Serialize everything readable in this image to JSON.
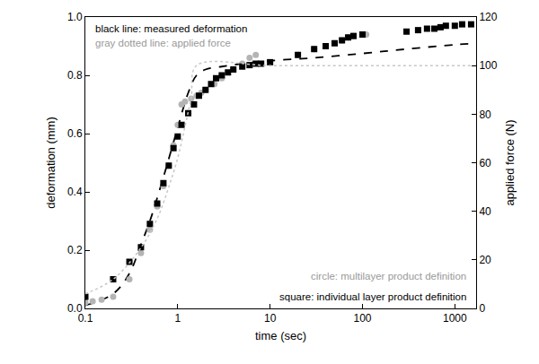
{
  "chart_data": {
    "type": "line",
    "x_label": "time (sec)",
    "y_label": "deformation (mm)",
    "y2_label": "applied force (N)",
    "log": "x",
    "grid": false,
    "xlim": [
      0.1,
      1700
    ],
    "xticks": [
      0.1,
      1,
      10,
      100,
      1000
    ],
    "ylim": [
      0,
      1.0
    ],
    "yticks": [
      {
        "value": 0,
        "label": "0.0"
      },
      0.2,
      0.4,
      0.6,
      0.8,
      {
        "value": 1,
        "label": "1.0"
      }
    ],
    "y2lim": [
      0,
      120
    ],
    "y2ticks": [
      0,
      20,
      40,
      60,
      80,
      100,
      120
    ],
    "annotations": [
      {
        "text": "black line: measured deformation",
        "color": "#000000"
      },
      {
        "text": "gray dotted line: applied force",
        "color": "#9a9a9a"
      },
      {
        "text": "circle: multilayer product definition",
        "color": "#9a9a9a"
      },
      {
        "text": "square: individual layer product definition",
        "color": "#000000"
      }
    ],
    "series": [
      {
        "type": "line",
        "line_style": "dotted",
        "color": "#c8c8c8",
        "axis": "y2",
        "x": [
          0.1,
          0.2,
          0.4,
          0.6,
          0.8,
          1.0,
          1.2,
          1.4,
          1.6,
          10,
          100,
          1700
        ],
        "values": [
          6,
          12,
          25,
          37,
          50,
          62,
          75,
          87,
          100,
          100,
          100,
          100
        ]
      },
      {
        "type": "line",
        "line_style": "dashed",
        "color": "#000000",
        "x": [
          0.1,
          0.2,
          0.3,
          0.4,
          0.5,
          0.7,
          1,
          1.3,
          1.6,
          2,
          3,
          5,
          10,
          30,
          100,
          300,
          1000,
          1700
        ],
        "values": [
          0.01,
          0.05,
          0.12,
          0.22,
          0.3,
          0.45,
          0.62,
          0.74,
          0.8,
          0.82,
          0.83,
          0.84,
          0.85,
          0.86,
          0.875,
          0.89,
          0.905,
          0.91
        ]
      },
      {
        "type": "scatter",
        "marker": "circle",
        "color": "#b4b4b4",
        "x": [
          0.1,
          0.12,
          0.15,
          0.2,
          0.3,
          0.4,
          0.5,
          0.6,
          0.7,
          0.8,
          0.9,
          1.0,
          1.1,
          1.2,
          1.4,
          1.6,
          1.8,
          2,
          2.5,
          3,
          4,
          5,
          6,
          7,
          20,
          30,
          40,
          50,
          60,
          70,
          80,
          100,
          110
        ],
        "values": [
          0.02,
          0.025,
          0.03,
          0.04,
          0.1,
          0.19,
          0.27,
          0.35,
          0.42,
          0.49,
          0.56,
          0.63,
          0.7,
          0.71,
          0.72,
          0.73,
          0.74,
          0.75,
          0.77,
          0.79,
          0.82,
          0.84,
          0.86,
          0.87,
          0.87,
          0.89,
          0.9,
          0.91,
          0.92,
          0.93,
          0.935,
          0.94,
          0.94
        ]
      },
      {
        "type": "scatter",
        "marker": "square",
        "color": "#000000",
        "x": [
          0.1,
          0.2,
          0.3,
          0.4,
          0.5,
          0.6,
          0.7,
          0.8,
          0.9,
          1.0,
          1.1,
          1.3,
          1.5,
          1.7,
          2,
          2.3,
          2.6,
          3,
          3.5,
          4,
          5,
          6,
          7,
          8,
          10,
          20,
          30,
          40,
          50,
          60,
          70,
          80,
          100,
          300,
          400,
          500,
          600,
          700,
          800,
          1000,
          1200,
          1500
        ],
        "values": [
          0.04,
          0.1,
          0.16,
          0.21,
          0.29,
          0.36,
          0.43,
          0.49,
          0.55,
          0.59,
          0.63,
          0.67,
          0.7,
          0.73,
          0.75,
          0.77,
          0.79,
          0.8,
          0.81,
          0.82,
          0.83,
          0.835,
          0.84,
          0.84,
          0.845,
          0.87,
          0.89,
          0.9,
          0.91,
          0.92,
          0.93,
          0.935,
          0.94,
          0.95,
          0.955,
          0.96,
          0.96,
          0.965,
          0.97,
          0.97,
          0.975,
          0.975
        ]
      }
    ]
  }
}
